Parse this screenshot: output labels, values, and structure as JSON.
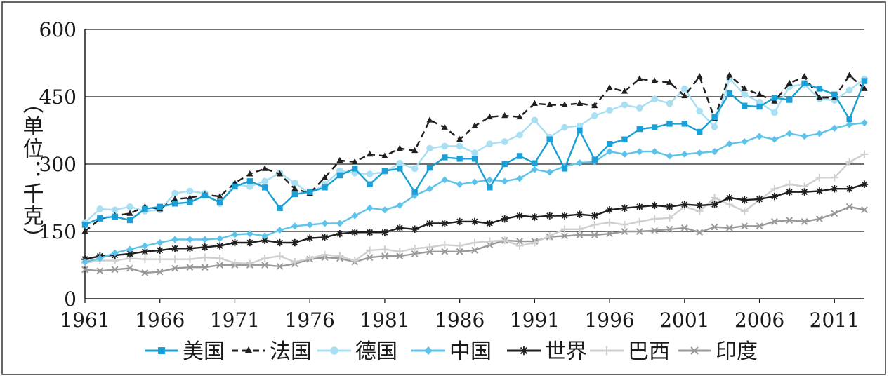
{
  "chart_data": {
    "type": "line",
    "title": "",
    "xlabel": "",
    "ylabel": "（单位：千克）",
    "ylim": [
      0,
      600
    ],
    "yticks": [
      0,
      150,
      300,
      450,
      600
    ],
    "xlim": [
      1961,
      2013
    ],
    "xtick_labels": [
      "1961",
      "1966",
      "1971",
      "1976",
      "1981",
      "1986",
      "1991",
      "1996",
      "2001",
      "2006",
      "2011"
    ],
    "grid": "horizontal",
    "legend_position": "bottom",
    "x": [
      1961,
      1962,
      1963,
      1964,
      1965,
      1966,
      1967,
      1968,
      1969,
      1970,
      1971,
      1972,
      1973,
      1974,
      1975,
      1976,
      1977,
      1978,
      1979,
      1980,
      1981,
      1982,
      1983,
      1984,
      1985,
      1986,
      1987,
      1988,
      1989,
      1990,
      1991,
      1992,
      1993,
      1994,
      1995,
      1996,
      1997,
      1998,
      1999,
      2000,
      2001,
      2002,
      2003,
      2004,
      2005,
      2006,
      2007,
      2008,
      2009,
      2010,
      2011,
      2012,
      2013
    ],
    "series": [
      {
        "name": "美国",
        "color": "#1a9fd6",
        "marker": "square",
        "dash": "solid",
        "values": [
          165,
          180,
          183,
          175,
          200,
          205,
          212,
          215,
          230,
          215,
          250,
          262,
          248,
          202,
          233,
          238,
          248,
          275,
          290,
          255,
          285,
          290,
          238,
          292,
          315,
          312,
          312,
          248,
          300,
          318,
          302,
          355,
          290,
          375,
          310,
          345,
          355,
          378,
          382,
          390,
          390,
          372,
          405,
          458,
          430,
          428,
          448,
          443,
          480,
          468,
          455,
          400,
          485
        ]
      },
      {
        "name": "法国",
        "color": "#1f1f1f",
        "marker": "triangle",
        "dash": "dashed",
        "values": [
          150,
          178,
          185,
          190,
          205,
          200,
          222,
          225,
          232,
          228,
          258,
          278,
          290,
          278,
          245,
          235,
          270,
          308,
          305,
          322,
          318,
          335,
          330,
          398,
          382,
          355,
          385,
          405,
          408,
          405,
          435,
          432,
          432,
          435,
          430,
          470,
          462,
          490,
          485,
          482,
          452,
          495,
          402,
          498,
          468,
          455,
          440,
          480,
          495,
          448,
          448,
          498,
          468
        ]
      },
      {
        "name": "德国",
        "color": "#a9dff2",
        "marker": "circle",
        "dash": "solid",
        "values": [
          170,
          200,
          198,
          205,
          195,
          198,
          235,
          240,
          235,
          212,
          255,
          250,
          262,
          280,
          258,
          235,
          255,
          285,
          280,
          278,
          282,
          302,
          290,
          335,
          340,
          340,
          325,
          345,
          350,
          365,
          398,
          360,
          382,
          385,
          408,
          420,
          432,
          425,
          445,
          435,
          468,
          418,
          383,
          490,
          455,
          438,
          415,
          473,
          478,
          445,
          442,
          465,
          490
        ]
      },
      {
        "name": "中国",
        "color": "#5ec3ea",
        "marker": "diamond",
        "dash": "solid",
        "values": [
          82,
          90,
          102,
          110,
          118,
          125,
          132,
          132,
          132,
          134,
          143,
          145,
          140,
          153,
          162,
          165,
          168,
          168,
          185,
          202,
          198,
          208,
          230,
          245,
          265,
          255,
          260,
          265,
          262,
          268,
          288,
          282,
          295,
          303,
          305,
          328,
          322,
          328,
          328,
          318,
          322,
          325,
          328,
          345,
          350,
          362,
          355,
          368,
          362,
          368,
          380,
          388,
          392
        ]
      },
      {
        "name": "世界",
        "color": "#1f1f1f",
        "marker": "star",
        "dash": "solid",
        "values": [
          88,
          95,
          97,
          100,
          105,
          108,
          112,
          112,
          115,
          118,
          125,
          125,
          130,
          125,
          125,
          135,
          137,
          145,
          148,
          148,
          148,
          158,
          155,
          168,
          168,
          172,
          172,
          168,
          178,
          185,
          182,
          185,
          185,
          188,
          185,
          198,
          202,
          205,
          208,
          205,
          210,
          208,
          210,
          225,
          220,
          222,
          228,
          238,
          238,
          240,
          245,
          245,
          255
        ]
      },
      {
        "name": "巴西",
        "color": "#cfcfcf",
        "marker": "plus",
        "dash": "solid",
        "values": [
          80,
          85,
          85,
          90,
          88,
          88,
          88,
          88,
          92,
          90,
          80,
          78,
          90,
          95,
          82,
          90,
          98,
          95,
          85,
          108,
          110,
          105,
          112,
          115,
          120,
          118,
          125,
          128,
          130,
          118,
          125,
          140,
          155,
          155,
          165,
          170,
          165,
          172,
          178,
          180,
          205,
          195,
          225,
          210,
          195,
          220,
          245,
          255,
          250,
          270,
          270,
          305,
          322
        ]
      },
      {
        "name": "印度",
        "color": "#999999",
        "marker": "x",
        "dash": "solid",
        "values": [
          65,
          62,
          65,
          68,
          58,
          60,
          68,
          70,
          70,
          75,
          75,
          75,
          75,
          72,
          78,
          88,
          92,
          90,
          82,
          92,
          95,
          95,
          100,
          105,
          105,
          105,
          108,
          120,
          130,
          128,
          128,
          138,
          140,
          142,
          142,
          145,
          150,
          150,
          152,
          155,
          158,
          148,
          160,
          158,
          162,
          162,
          172,
          175,
          172,
          178,
          190,
          205,
          198
        ]
      }
    ]
  }
}
